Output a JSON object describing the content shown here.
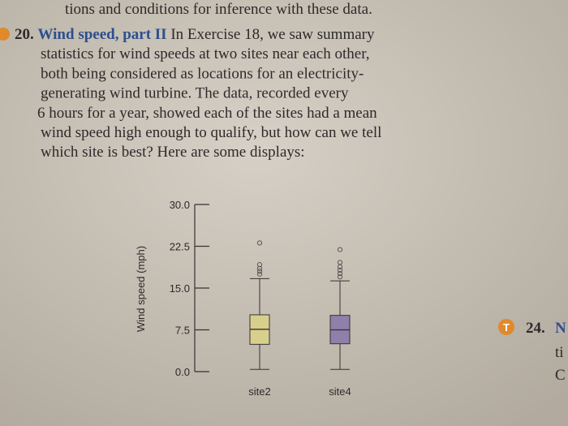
{
  "top_line": "tions and conditions for inference with these data.",
  "exercise": {
    "number": "20.",
    "title": "Wind speed, part II",
    "lines": [
      "In Exercise 18, we saw summary",
      "statistics for wind speeds at two sites near each other,",
      "both being considered as locations for an electricity-",
      "generating wind turbine. The data, recorded every",
      "6 hours for a year, showed each of the sites had a mean",
      "wind speed high enough to qualify, but how can we tell",
      "which site is best? Here are some displays:"
    ]
  },
  "chart_data": {
    "type": "box",
    "ylabel": "Wind speed (mph)",
    "categories": [
      "site2",
      "site4"
    ],
    "colors": [
      "#d9cf8c",
      "#8e80aa"
    ],
    "boxes": [
      {
        "whisker_low": 0.4,
        "q1": 4.9,
        "median": 7.6,
        "q3": 10.2,
        "whisker_high": 16.7,
        "outliers": [
          17.5,
          18.0,
          18.5,
          19.2,
          23.1
        ]
      },
      {
        "whisker_low": 0.4,
        "q1": 5.0,
        "median": 7.5,
        "q3": 10.1,
        "whisker_high": 16.3,
        "outliers": [
          17.0,
          17.6,
          18.2,
          18.8,
          19.6,
          21.9
        ]
      }
    ],
    "ylim": [
      0,
      30
    ],
    "yticks": [
      {
        "value": 0,
        "label": "0.0"
      },
      {
        "value": 7.5,
        "label": "7.5"
      },
      {
        "value": 15,
        "label": "15.0"
      },
      {
        "value": 22.5,
        "label": "22.5"
      },
      {
        "value": 30,
        "label": "30.0"
      }
    ]
  },
  "side_fragment": {
    "icon": "T",
    "number": "24.",
    "title": "N",
    "lines": [
      "ti",
      "C"
    ]
  }
}
